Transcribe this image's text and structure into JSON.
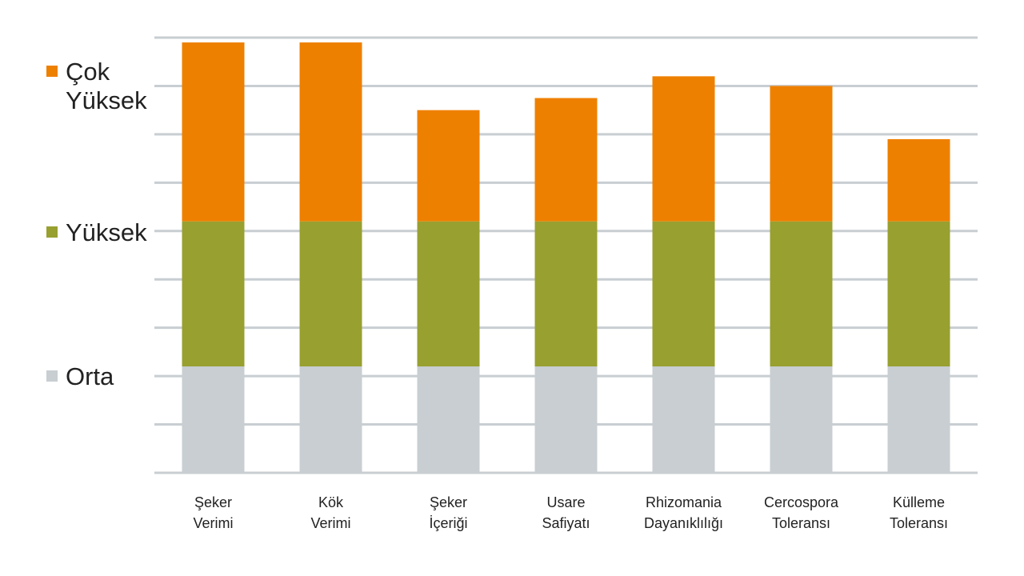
{
  "chart_data": {
    "type": "bar",
    "stacked": true,
    "title": "",
    "xlabel": "",
    "ylabel": "",
    "grid": true,
    "legend_position": "left",
    "categories": [
      [
        "Şeker",
        "Verimi"
      ],
      [
        "Kök",
        "Verimi"
      ],
      [
        "Şeker",
        "İçeriği"
      ],
      [
        "Usare",
        "Safiyatı"
      ],
      [
        "Rhizomania",
        "Dayanıklılığı"
      ],
      [
        "Cercospora",
        "Toleransı"
      ],
      [
        "Külleme",
        "Toleransı"
      ]
    ],
    "ylim": [
      0,
      9
    ],
    "series": [
      {
        "name": "Orta",
        "color": "#c8ced2",
        "values": [
          2.2,
          2.2,
          2.2,
          2.2,
          2.2,
          2.2,
          2.2
        ]
      },
      {
        "name": "Yüksek",
        "color": "#98a030",
        "values": [
          3.0,
          3.0,
          3.0,
          3.0,
          3.0,
          3.0,
          3.0
        ]
      },
      {
        "name": "Çok Yüksek",
        "color": "#ee8000",
        "values": [
          3.7,
          3.7,
          2.3,
          2.55,
          3.0,
          2.8,
          1.7
        ]
      }
    ]
  },
  "legend": [
    {
      "lines": [
        "Çok",
        "Yüksek"
      ],
      "color": "#ee8000"
    },
    {
      "lines": [
        "Yüksek"
      ],
      "color": "#98a030"
    },
    {
      "lines": [
        "Orta"
      ],
      "color": "#c8ced2"
    }
  ],
  "gridline_color": "#c8ced2"
}
